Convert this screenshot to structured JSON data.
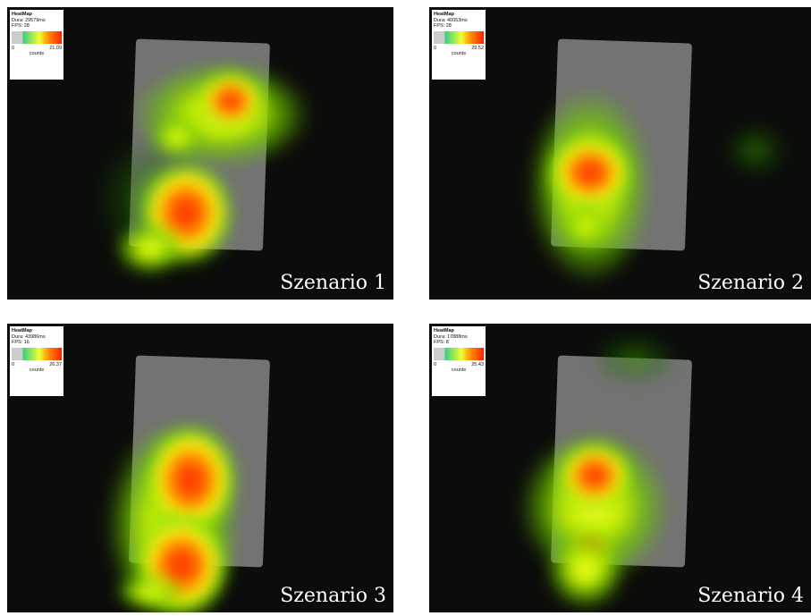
{
  "panels": [
    {
      "label": "Szenario 1",
      "legend": {
        "title": "HeatMap",
        "duration": "Dura: 29579ms",
        "fps": "FPS: 28",
        "min": "0",
        "max": "21.09",
        "unit": "counts"
      }
    },
    {
      "label": "Szenario 2",
      "legend": {
        "title": "HeatMap",
        "duration": "Dura: 40053ms",
        "fps": "FPS: 28",
        "min": "0",
        "max": "29.52",
        "unit": "counts"
      }
    },
    {
      "label": "Szenario 3",
      "legend": {
        "title": "HeatMap",
        "duration": "Dura: 43986ms",
        "fps": "FPS: 16",
        "min": "0",
        "max": "26.37",
        "unit": "counts"
      }
    },
    {
      "label": "Szenario 4",
      "legend": {
        "title": "HeatMap",
        "duration": "Dura: 17888ms",
        "fps": "FPS: 8",
        "min": "0",
        "max": "25.43",
        "unit": "counts"
      }
    }
  ]
}
